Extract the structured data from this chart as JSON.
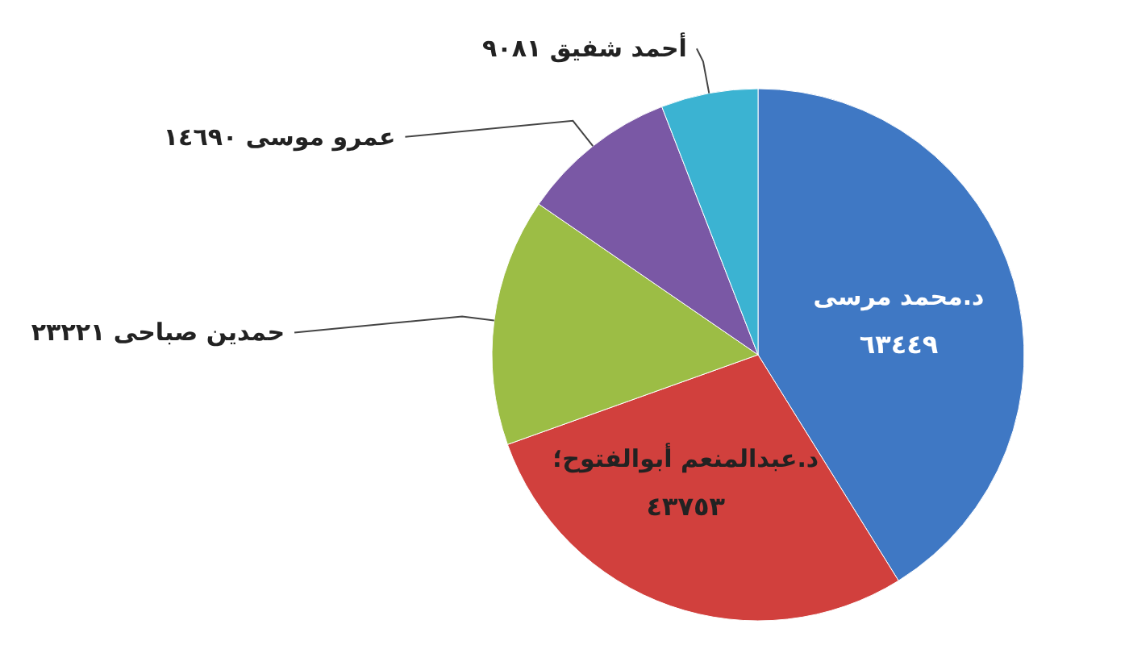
{
  "chart_data": {
    "type": "pie",
    "categories": [
      "د.محمد مرسى",
      "د.عبدالمنعم أبوالفتوح؛",
      "حمدين صباحى",
      "عمرو موسى",
      "أحمد شفيق"
    ],
    "values": [
      63449,
      43753,
      23221,
      14690,
      9081
    ],
    "value_labels": [
      "٦٣٤٤٩",
      "٤٣٧٥٣",
      "٢٣٢٢١",
      "١٤٦٩٠",
      "٩٠٨١"
    ],
    "colors": [
      "#3f78c4",
      "#d1403d",
      "#9cbd45",
      "#7a58a5",
      "#3bb3d2"
    ]
  }
}
